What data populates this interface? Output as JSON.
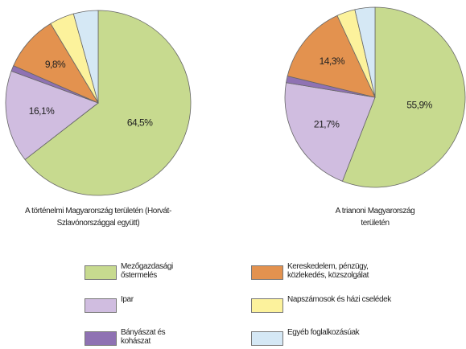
{
  "chart_data": [
    {
      "type": "pie",
      "title": "A történelmi Magyarország területén (Horvát-Szlavónországgal együtt)",
      "categories": [
        "Mezőgazdasági őstermelés",
        "Ipar",
        "Bányászat és kohászat",
        "Kereskedelem, pénzügy, közlekedés, közszolgálat",
        "Napszámosok és házi cselédek",
        "Egyéb foglalkozásúak"
      ],
      "values": [
        64.5,
        16.1,
        1.0,
        9.8,
        4.3,
        4.3
      ],
      "value_labels": [
        "64,5%",
        "16,1%",
        null,
        "9,8%",
        null,
        null
      ],
      "colors": [
        "#c7da8f",
        "#d0bde0",
        "#8f72b3",
        "#e3924f",
        "#fcf29c",
        "#d5e8f5"
      ]
    },
    {
      "type": "pie",
      "title": "A trianoni Magyarország területén",
      "categories": [
        "Mezőgazdasági őstermelés",
        "Ipar",
        "Bányászat és kohászat",
        "Kereskedelem, pénzügy, közlekedés, közszolgálat",
        "Napszámosok és házi cselédek",
        "Egyéb foglalkozásúak"
      ],
      "values": [
        55.9,
        21.7,
        1.2,
        14.3,
        3.3,
        3.6
      ],
      "value_labels": [
        "55,9%",
        "21,7%",
        null,
        "14,3%",
        null,
        null
      ],
      "colors": [
        "#c7da8f",
        "#d0bde0",
        "#8f72b3",
        "#e3924f",
        "#fcf29c",
        "#d5e8f5"
      ]
    }
  ]
}
